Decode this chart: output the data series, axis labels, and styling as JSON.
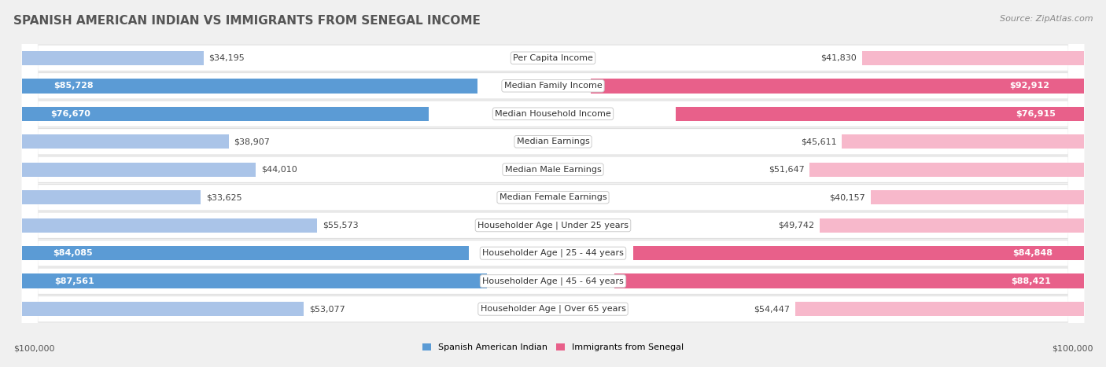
{
  "title": "SPANISH AMERICAN INDIAN VS IMMIGRANTS FROM SENEGAL INCOME",
  "source": "Source: ZipAtlas.com",
  "categories": [
    "Per Capita Income",
    "Median Family Income",
    "Median Household Income",
    "Median Earnings",
    "Median Male Earnings",
    "Median Female Earnings",
    "Householder Age | Under 25 years",
    "Householder Age | 25 - 44 years",
    "Householder Age | 45 - 64 years",
    "Householder Age | Over 65 years"
  ],
  "left_values": [
    34195,
    85728,
    76670,
    38907,
    44010,
    33625,
    55573,
    84085,
    87561,
    53077
  ],
  "right_values": [
    41830,
    92912,
    76915,
    45611,
    51647,
    40157,
    49742,
    84848,
    88421,
    54447
  ],
  "left_labels": [
    "$34,195",
    "$85,728",
    "$76,670",
    "$38,907",
    "$44,010",
    "$33,625",
    "$55,573",
    "$84,085",
    "$87,561",
    "$53,077"
  ],
  "right_labels": [
    "$41,830",
    "$92,912",
    "$76,915",
    "$45,611",
    "$51,647",
    "$40,157",
    "$49,742",
    "$84,848",
    "$88,421",
    "$54,447"
  ],
  "left_label_inside": [
    false,
    true,
    true,
    false,
    false,
    false,
    false,
    true,
    true,
    false
  ],
  "right_label_inside": [
    false,
    true,
    true,
    false,
    false,
    false,
    false,
    true,
    true,
    false
  ],
  "max_value": 100000,
  "left_color_normal": "#aac4e8",
  "left_color_dark": "#5b9bd5",
  "right_color_normal": "#f7b8cb",
  "right_color_dark": "#e8608a",
  "left_legend": "Spanish American Indian",
  "right_legend": "Immigrants from Senegal",
  "background_color": "#f0f0f0",
  "row_bg_color": "#ffffff",
  "axis_label_left": "$100,000",
  "axis_label_right": "$100,000",
  "title_fontsize": 11,
  "label_fontsize": 8,
  "category_fontsize": 8,
  "source_fontsize": 8,
  "threshold_dark": 60000
}
